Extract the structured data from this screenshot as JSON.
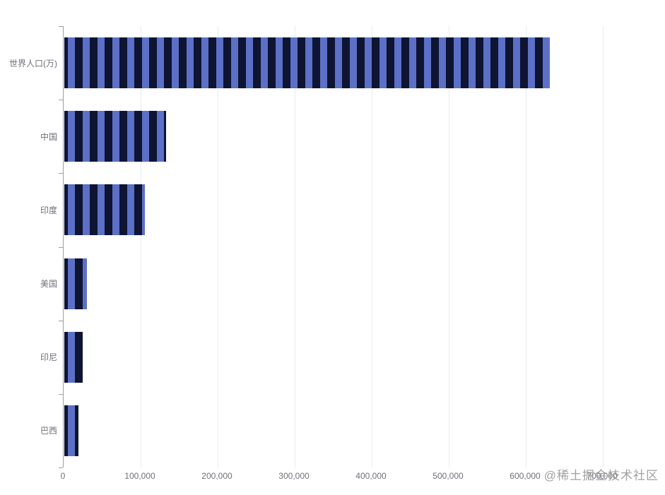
{
  "chart_data": {
    "type": "bar",
    "orientation": "horizontal",
    "title": "",
    "categories": [
      "世界人口(万)",
      "中国",
      "印度",
      "美国",
      "印尼",
      "巴西"
    ],
    "values": [
      630230,
      131744,
      104970,
      29034,
      23489,
      18203
    ],
    "xlim": [
      0,
      700000
    ],
    "x_tick_labels": [
      "0",
      "100,000",
      "200,000",
      "300,000",
      "400,000",
      "500,000",
      "600,000",
      "700,000"
    ],
    "grid": true,
    "legend_position": "none",
    "bar_style": "vertical-striped-decal",
    "colors": {
      "stripe_blue": "#5b70c6",
      "stripe_dark": "#0e1432",
      "axis_line": "#9aa0a8",
      "grid_line": "#e9ebef",
      "axis_label": "#6e7079"
    }
  },
  "watermark": {
    "text": "@稀土掘金技术社区"
  }
}
